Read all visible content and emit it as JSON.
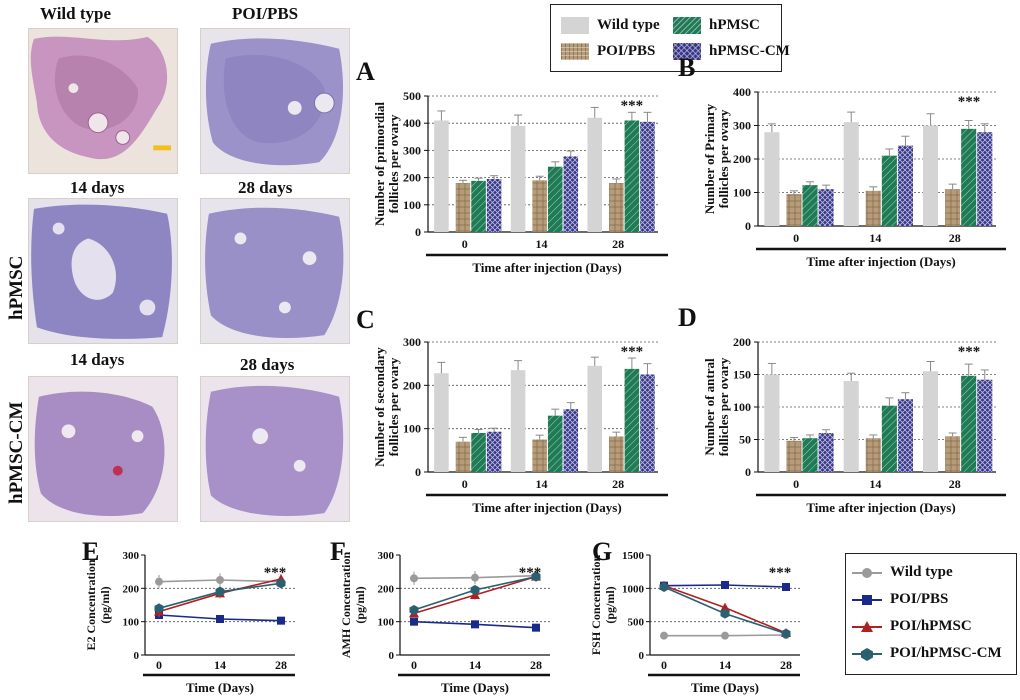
{
  "histology": {
    "col_wild": "Wild type",
    "col_poi": "POI/PBS",
    "d14_a": "14 days",
    "d28_a": "28 days",
    "d14_b": "14 days",
    "d28_b": "28 days",
    "row_hpmsc": "hPMSC",
    "row_cm": "hPMSC-CM"
  },
  "colors": {
    "wild": "#d4d4d4",
    "poi": "#b59d7c",
    "hpmsc": "#1f7a55",
    "cm": "#37377a",
    "line_wild": "#9a9a9a",
    "line_poi": "#1a2a8a",
    "line_hpmsc": "#b02020",
    "line_cm": "#2a6070"
  },
  "legend_bar": [
    "Wild type",
    "hPMSC",
    "POI/PBS",
    "hPMSC-CM"
  ],
  "legend_line": [
    "Wild type",
    "POI/PBS",
    "POI/hPMSC",
    "POI/hPMSC-CM"
  ],
  "chart_data": [
    {
      "id": "A",
      "type": "bar",
      "ylabel": "Number of primordial follicles per ovary",
      "xlabel": "Time after injection (Days)",
      "categories": [
        "0",
        "14",
        "28"
      ],
      "ylim": [
        0,
        500
      ],
      "yticks": [
        0,
        100,
        200,
        300,
        400,
        500
      ],
      "series": [
        {
          "name": "Wild type",
          "values": [
            410,
            390,
            420
          ],
          "err": [
            35,
            40,
            38
          ]
        },
        {
          "name": "POI/PBS",
          "values": [
            180,
            190,
            180
          ],
          "err": [
            10,
            15,
            15
          ]
        },
        {
          "name": "hPMSC",
          "values": [
            188,
            240,
            410
          ],
          "err": [
            10,
            18,
            30
          ]
        },
        {
          "name": "hPMSC-CM",
          "values": [
            195,
            278,
            405
          ],
          "err": [
            12,
            20,
            35
          ]
        }
      ],
      "annotation": "***"
    },
    {
      "id": "B",
      "type": "bar",
      "ylabel": "Number of Primary follicles per ovary",
      "xlabel": "Time after injection (Days)",
      "categories": [
        "0",
        "14",
        "28"
      ],
      "ylim": [
        0,
        400
      ],
      "yticks": [
        0,
        100,
        200,
        300,
        400
      ],
      "series": [
        {
          "name": "Wild type",
          "values": [
            280,
            310,
            300
          ],
          "err": [
            25,
            30,
            35
          ]
        },
        {
          "name": "POI/PBS",
          "values": [
            95,
            105,
            110
          ],
          "err": [
            10,
            12,
            15
          ]
        },
        {
          "name": "hPMSC",
          "values": [
            122,
            210,
            290
          ],
          "err": [
            10,
            20,
            25
          ]
        },
        {
          "name": "hPMSC-CM",
          "values": [
            110,
            240,
            280
          ],
          "err": [
            12,
            28,
            25
          ]
        }
      ],
      "annotation": "***"
    },
    {
      "id": "C",
      "type": "bar",
      "ylabel": "Number of secondary follicles per ovary",
      "xlabel": "Time after injection (Days)",
      "categories": [
        "0",
        "14",
        "28"
      ],
      "ylim": [
        0,
        300
      ],
      "yticks": [
        0,
        100,
        200,
        300
      ],
      "series": [
        {
          "name": "Wild type",
          "values": [
            228,
            235,
            245
          ],
          "err": [
            25,
            22,
            20
          ]
        },
        {
          "name": "POI/PBS",
          "values": [
            70,
            75,
            82
          ],
          "err": [
            10,
            10,
            10
          ]
        },
        {
          "name": "hPMSC",
          "values": [
            90,
            130,
            238
          ],
          "err": [
            8,
            15,
            25
          ]
        },
        {
          "name": "hPMSC-CM",
          "values": [
            93,
            145,
            225
          ],
          "err": [
            8,
            15,
            25
          ]
        }
      ],
      "annotation": "***"
    },
    {
      "id": "D",
      "type": "bar",
      "ylabel": "Number of antral follicles per ovary",
      "xlabel": "Time after injection (Days)",
      "categories": [
        "0",
        "14",
        "28"
      ],
      "ylim": [
        0,
        200
      ],
      "yticks": [
        0,
        50,
        100,
        150,
        200
      ],
      "series": [
        {
          "name": "Wild type",
          "values": [
            150,
            140,
            155
          ],
          "err": [
            17,
            12,
            15
          ]
        },
        {
          "name": "POI/PBS",
          "values": [
            48,
            52,
            55
          ],
          "err": [
            5,
            5,
            5
          ]
        },
        {
          "name": "hPMSC",
          "values": [
            52,
            102,
            148
          ],
          "err": [
            5,
            12,
            18
          ]
        },
        {
          "name": "hPMSC-CM",
          "values": [
            60,
            112,
            142
          ],
          "err": [
            5,
            10,
            15
          ]
        }
      ],
      "annotation": "***"
    },
    {
      "id": "E",
      "type": "line",
      "ylabel": "E2 Concentration (pg/ml)",
      "xlabel": "Time (Days)",
      "x": [
        0,
        14,
        28
      ],
      "ylim": [
        0,
        300
      ],
      "yticks": [
        0,
        100,
        200,
        300
      ],
      "series": [
        {
          "name": "Wild type",
          "values": [
            220,
            225,
            220
          ],
          "err": [
            20,
            20,
            20
          ]
        },
        {
          "name": "POI/PBS",
          "values": [
            120,
            108,
            103
          ],
          "err": [
            8,
            6,
            6
          ]
        },
        {
          "name": "POI/hPMSC",
          "values": [
            130,
            185,
            228
          ],
          "err": [
            15,
            15,
            15
          ]
        },
        {
          "name": "POI/hPMSC-CM",
          "values": [
            140,
            190,
            215
          ],
          "err": [
            15,
            15,
            15
          ]
        }
      ],
      "annotation": "***"
    },
    {
      "id": "F",
      "type": "line",
      "ylabel": "AMH Concentration (pg/ml)",
      "xlabel": "Time (Days)",
      "x": [
        0,
        14,
        28
      ],
      "ylim": [
        0,
        300
      ],
      "yticks": [
        0,
        100,
        200,
        300
      ],
      "series": [
        {
          "name": "Wild type",
          "values": [
            230,
            232,
            238
          ],
          "err": [
            20,
            20,
            15
          ]
        },
        {
          "name": "POI/PBS",
          "values": [
            100,
            92,
            82
          ],
          "err": [
            8,
            6,
            5
          ]
        },
        {
          "name": "POI/hPMSC",
          "values": [
            125,
            180,
            235
          ],
          "err": [
            15,
            15,
            15
          ]
        },
        {
          "name": "POI/hPMSC-CM",
          "values": [
            135,
            195,
            235
          ],
          "err": [
            15,
            15,
            15
          ]
        }
      ],
      "annotation": "***"
    },
    {
      "id": "G",
      "type": "line",
      "ylabel": "FSH Concentration (pg/ml)",
      "xlabel": "Time (Days)",
      "x": [
        0,
        14,
        28
      ],
      "ylim": [
        0,
        1500
      ],
      "yticks": [
        0,
        500,
        1000,
        1500
      ],
      "series": [
        {
          "name": "Wild type",
          "values": [
            290,
            290,
            300
          ],
          "err": [
            20,
            20,
            20
          ]
        },
        {
          "name": "POI/PBS",
          "values": [
            1040,
            1050,
            1020
          ],
          "err": [
            60,
            50,
            50
          ]
        },
        {
          "name": "POI/hPMSC",
          "values": [
            1040,
            710,
            330
          ],
          "err": [
            70,
            60,
            40
          ]
        },
        {
          "name": "POI/hPMSC-CM",
          "values": [
            1020,
            620,
            320
          ],
          "err": [
            70,
            60,
            40
          ]
        }
      ],
      "annotation": "***"
    }
  ]
}
